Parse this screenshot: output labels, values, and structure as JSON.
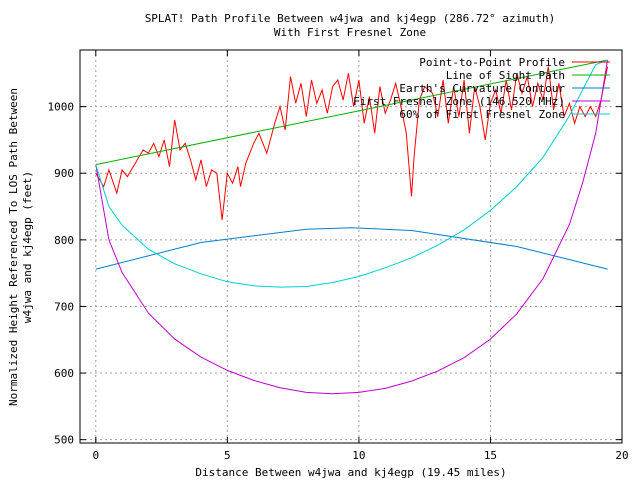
{
  "chart_data": {
    "type": "line",
    "title": "SPLAT! Path Profile Between w4jwa and kj4egp (286.72° azimuth)",
    "subtitle": "With First Fresnel Zone",
    "xlabel": "Distance Between w4jwa and kj4egp (19.45 miles)",
    "ylabel": "Normalized Height Referenced To LOS Path Between w4jwa and kj4egp (feet)",
    "ylabel_lines": [
      "Normalized Height Referenced To LOS Path Between",
      "w4jwa and kj4egp (feet)"
    ],
    "xlim": [
      -0.6,
      20
    ],
    "ylim": [
      495,
      1085
    ],
    "xticks": [
      0,
      5,
      10,
      15,
      20
    ],
    "yticks": [
      500,
      600,
      700,
      800,
      900,
      1000
    ],
    "grid": true,
    "legend_position": "top-right",
    "path_length": 19.45,
    "series": [
      {
        "name": "Point-to-Point Profile",
        "color": "#ff0000",
        "x": [
          0,
          0.3,
          0.5,
          0.8,
          1.0,
          1.2,
          1.5,
          1.8,
          2.0,
          2.2,
          2.4,
          2.6,
          2.8,
          3.0,
          3.2,
          3.4,
          3.6,
          3.8,
          4.0,
          4.2,
          4.4,
          4.6,
          4.8,
          5.0,
          5.2,
          5.4,
          5.5,
          5.7,
          6.0,
          6.2,
          6.5,
          6.8,
          7.0,
          7.2,
          7.4,
          7.6,
          7.8,
          8.0,
          8.2,
          8.4,
          8.6,
          8.8,
          9.0,
          9.2,
          9.4,
          9.6,
          9.8,
          10.0,
          10.2,
          10.4,
          10.6,
          10.8,
          11.0,
          11.2,
          11.4,
          11.6,
          11.8,
          12.0,
          12.1,
          12.3,
          12.5,
          12.8,
          13.0,
          13.2,
          13.4,
          13.6,
          13.8,
          14.0,
          14.2,
          14.4,
          14.6,
          14.8,
          15.0,
          15.2,
          15.4,
          15.6,
          15.8,
          16.0,
          16.2,
          16.4,
          16.6,
          16.8,
          17.0,
          17.2,
          17.4,
          17.6,
          17.8,
          18.0,
          18.2,
          18.4,
          18.6,
          18.8,
          19.0,
          19.2,
          19.45
        ],
        "y": [
          900,
          880,
          905,
          870,
          905,
          895,
          915,
          935,
          930,
          945,
          925,
          950,
          910,
          980,
          935,
          945,
          920,
          890,
          920,
          880,
          905,
          900,
          830,
          900,
          885,
          910,
          880,
          915,
          945,
          960,
          930,
          975,
          1000,
          965,
          1045,
          1005,
          1035,
          985,
          1040,
          1005,
          1025,
          990,
          1030,
          1040,
          1010,
          1050,
          1000,
          1040,
          975,
          1015,
          960,
          1030,
          990,
          1010,
          1035,
          1000,
          960,
          865,
          925,
          1010,
          1030,
          1020,
          985,
          1040,
          975,
          1030,
          985,
          1040,
          960,
          1030,
          1000,
          950,
          1005,
          1025,
          990,
          1040,
          995,
          1050,
          1020,
          1045,
          1000,
          1035,
          1010,
          1060,
          995,
          1035,
          985,
          1005,
          975,
          1000,
          985,
          1000,
          985,
          1010,
          1060
        ]
      },
      {
        "name": "Line of Sight Path",
        "color": "#00b000",
        "x": [
          0,
          19.45
        ],
        "y": [
          913,
          1070
        ]
      },
      {
        "name": "Earth's Curvature Contour",
        "color": "#0080d0",
        "x": [
          0,
          4,
          8,
          9.73,
          12,
          16,
          19.45
        ],
        "y": [
          756,
          796,
          816,
          818,
          814,
          790,
          756
        ]
      },
      {
        "name": "First Fresnel Zone (146.520 MHz)",
        "color": "#c000d0",
        "x": [
          0,
          0.5,
          1,
          2,
          3,
          4,
          5,
          6,
          7,
          8,
          9,
          10,
          11,
          12,
          13,
          14,
          15,
          16,
          17,
          18,
          18.5,
          19,
          19.45
        ],
        "y": [
          913,
          800,
          751,
          690,
          651,
          624,
          604,
          589,
          578,
          571,
          569,
          571,
          577,
          588,
          603,
          623,
          651,
          689,
          742,
          823,
          885,
          960,
          1070
        ]
      },
      {
        "name": "60% of First Fresnel Zone",
        "color": "#00d0d0",
        "x": [
          0,
          0.5,
          1,
          2,
          3,
          4,
          5,
          6,
          7,
          8,
          9,
          10,
          11,
          12,
          13,
          14,
          15,
          16,
          17,
          18,
          18.5,
          19,
          19.45
        ],
        "y": [
          913,
          850,
          822,
          786,
          764,
          749,
          737,
          731,
          729,
          730,
          736,
          745,
          758,
          773,
          792,
          815,
          844,
          880,
          924,
          986,
          1025,
          1063,
          1070
        ]
      }
    ]
  }
}
